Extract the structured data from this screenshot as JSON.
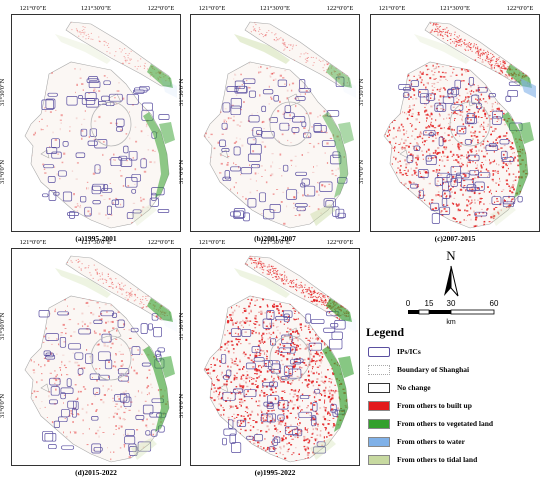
{
  "colors": {
    "ips_outline": "#5a4fa0",
    "boundary": "#aaaaaa",
    "no_change": "#ffffff",
    "built_up": "#e31a1c",
    "vegetated": "#33a02c",
    "water": "#80b1e8",
    "tidal": "#c7d9a0"
  },
  "axes": {
    "lon_ticks": [
      "121°0'0\"E",
      "121°30'0\"E",
      "122°0'0\"E"
    ],
    "lat_ticks": [
      "31°30'0\"N",
      "31°0'0\"N"
    ]
  },
  "panels": [
    {
      "caption": "(a)1995-2001",
      "red_level": 0.05,
      "green_level": 0.55,
      "blue_level": 0.1,
      "tidal_level": 0.2
    },
    {
      "caption": "(b)2001-2007",
      "red_level": 0.12,
      "green_level": 0.45,
      "blue_level": 0.05,
      "tidal_level": 0.45
    },
    {
      "caption": "(c)2007-2015",
      "red_level": 0.75,
      "green_level": 0.6,
      "blue_level": 0.6,
      "tidal_level": 0.2
    },
    {
      "caption": "(d)2015-2022",
      "red_level": 0.2,
      "green_level": 0.6,
      "blue_level": 0.05,
      "tidal_level": 0.3
    },
    {
      "caption": "(e)1995-2022",
      "red_level": 0.85,
      "green_level": 0.65,
      "blue_level": 0.05,
      "tidal_level": 0.3
    }
  ],
  "compass": {
    "label": "N"
  },
  "scale": {
    "ticks": [
      "0",
      "15",
      "30",
      "60"
    ],
    "unit": "km"
  },
  "legend": {
    "title": "Legend",
    "items": [
      {
        "label": "IPs/ICs",
        "swatch": "ips_outline"
      },
      {
        "label": "Boundary of Shanghai",
        "swatch": "boundary"
      },
      {
        "label": "No change",
        "swatch": "no_change"
      },
      {
        "label": "From others to built up",
        "swatch": "built_up"
      },
      {
        "label": "From others to vegetated land",
        "swatch": "vegetated"
      },
      {
        "label": "From others to water",
        "swatch": "water"
      },
      {
        "label": "From others to tidal land",
        "swatch": "tidal"
      }
    ]
  }
}
